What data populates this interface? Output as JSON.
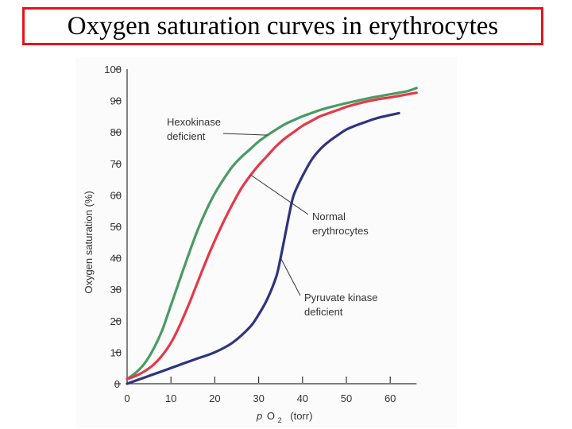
{
  "title": "Oxygen saturation curves in erythrocytes",
  "colors": {
    "title_border": "#e8121b",
    "axis": "#333333"
  },
  "chart_data": {
    "type": "line",
    "title": "Oxygen saturation curves in erythrocytes",
    "xlabel_p": "p",
    "xlabel_o": "O",
    "xlabel_sub": "2",
    "xlabel_unit": "(torr)",
    "ylabel": "Oxygen saturation (%)",
    "xlim": [
      0,
      70
    ],
    "ylim": [
      0,
      100
    ],
    "xticks": [
      0,
      10,
      20,
      30,
      40,
      50,
      60
    ],
    "yticks": [
      0,
      10,
      20,
      30,
      40,
      50,
      60,
      70,
      80,
      90,
      100
    ],
    "series": [
      {
        "name": "Hexokinase deficient",
        "color": "#4a9a64",
        "x": [
          0,
          2,
          4,
          6,
          8,
          10,
          12,
          14,
          16,
          18,
          20,
          22,
          24,
          26,
          28,
          30,
          32,
          34,
          36,
          38,
          40,
          42,
          44,
          46,
          48,
          50,
          52,
          54,
          56,
          58,
          60,
          62,
          64,
          66
        ],
        "y": [
          1.5,
          3.5,
          6.5,
          11,
          17,
          25,
          33,
          41,
          48.5,
          55,
          60.5,
          65,
          69,
          72,
          74.5,
          77,
          79,
          80.8,
          82.5,
          83.8,
          85,
          86,
          87,
          87.8,
          88.5,
          89.2,
          89.8,
          90.4,
          91,
          91.5,
          92,
          92.5,
          93,
          94
        ]
      },
      {
        "name": "Normal erythrocytes",
        "color": "#e53848",
        "x": [
          0,
          2,
          4,
          6,
          8,
          10,
          12,
          14,
          16,
          18,
          20,
          22,
          24,
          26,
          28,
          30,
          32,
          34,
          36,
          38,
          40,
          42,
          44,
          46,
          48,
          50,
          52,
          54,
          56,
          58,
          60,
          62,
          64,
          66
        ],
        "y": [
          1.5,
          2.5,
          4,
          6,
          9,
          13,
          18.5,
          25,
          32,
          39,
          45.5,
          51.5,
          57,
          62,
          66,
          69.5,
          72.5,
          75.5,
          78,
          80,
          82,
          83.5,
          85,
          86,
          87,
          88,
          88.8,
          89.5,
          90.1,
          90.6,
          91,
          91.5,
          92,
          92.5
        ]
      },
      {
        "name": "Pyruvate kinase deficient",
        "color": "#2e3380",
        "x": [
          0,
          4,
          8,
          12,
          16,
          20,
          24,
          28,
          30,
          32,
          34,
          35,
          36,
          37,
          38,
          40,
          42,
          44,
          46,
          48,
          50,
          52,
          54,
          56,
          58,
          60,
          62
        ],
        "y": [
          0,
          2,
          4,
          6,
          8,
          10,
          13,
          18,
          22,
          27,
          34,
          40,
          47,
          54,
          60,
          66,
          71,
          74.5,
          77,
          79,
          80.8,
          82,
          83,
          84,
          84.8,
          85.4,
          86
        ]
      }
    ],
    "annotations": [
      {
        "series": "Hexokinase deficient",
        "lines": [
          "Hexokinase",
          "deficient"
        ]
      },
      {
        "series": "Normal erythrocytes",
        "lines": [
          "Normal",
          "erythrocytes"
        ]
      },
      {
        "series": "Pyruvate kinase deficient",
        "lines": [
          "Pyruvate kinase",
          "deficient"
        ]
      }
    ]
  }
}
